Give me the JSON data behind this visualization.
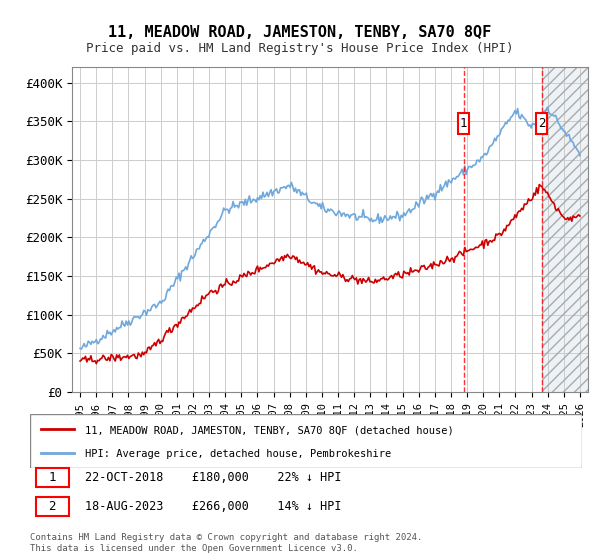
{
  "title": "11, MEADOW ROAD, JAMESTON, TENBY, SA70 8QF",
  "subtitle": "Price paid vs. HM Land Registry's House Price Index (HPI)",
  "ylabel_ticks": [
    "£0",
    "£50K",
    "£100K",
    "£150K",
    "£200K",
    "£250K",
    "£300K",
    "£350K",
    "£400K"
  ],
  "ylabel_values": [
    0,
    50000,
    100000,
    150000,
    200000,
    250000,
    300000,
    350000,
    400000
  ],
  "ylim": [
    0,
    420000
  ],
  "x_start_year": 1995,
  "x_end_year": 2026,
  "hpi_color": "#6fa8dc",
  "price_color": "#cc0000",
  "marker1_date_index": 23.8,
  "marker2_date_index": 28.6,
  "marker1_label": "1",
  "marker2_label": "2",
  "annotation1": "22-OCT-2018    £180,000    22% ↓ HPI",
  "annotation2": "18-AUG-2023    £266,000    14% ↓ HPI",
  "legend_line1": "11, MEADOW ROAD, JAMESTON, TENBY, SA70 8QF (detached house)",
  "legend_line2": "HPI: Average price, detached house, Pembrokeshire",
  "footer": "Contains HM Land Registry data © Crown copyright and database right 2024.\nThis data is licensed under the Open Government Licence v3.0.",
  "background_color": "#ffffff",
  "plot_bg_color": "#ffffff",
  "grid_color": "#cccccc",
  "shade_color": "#dce6f1"
}
